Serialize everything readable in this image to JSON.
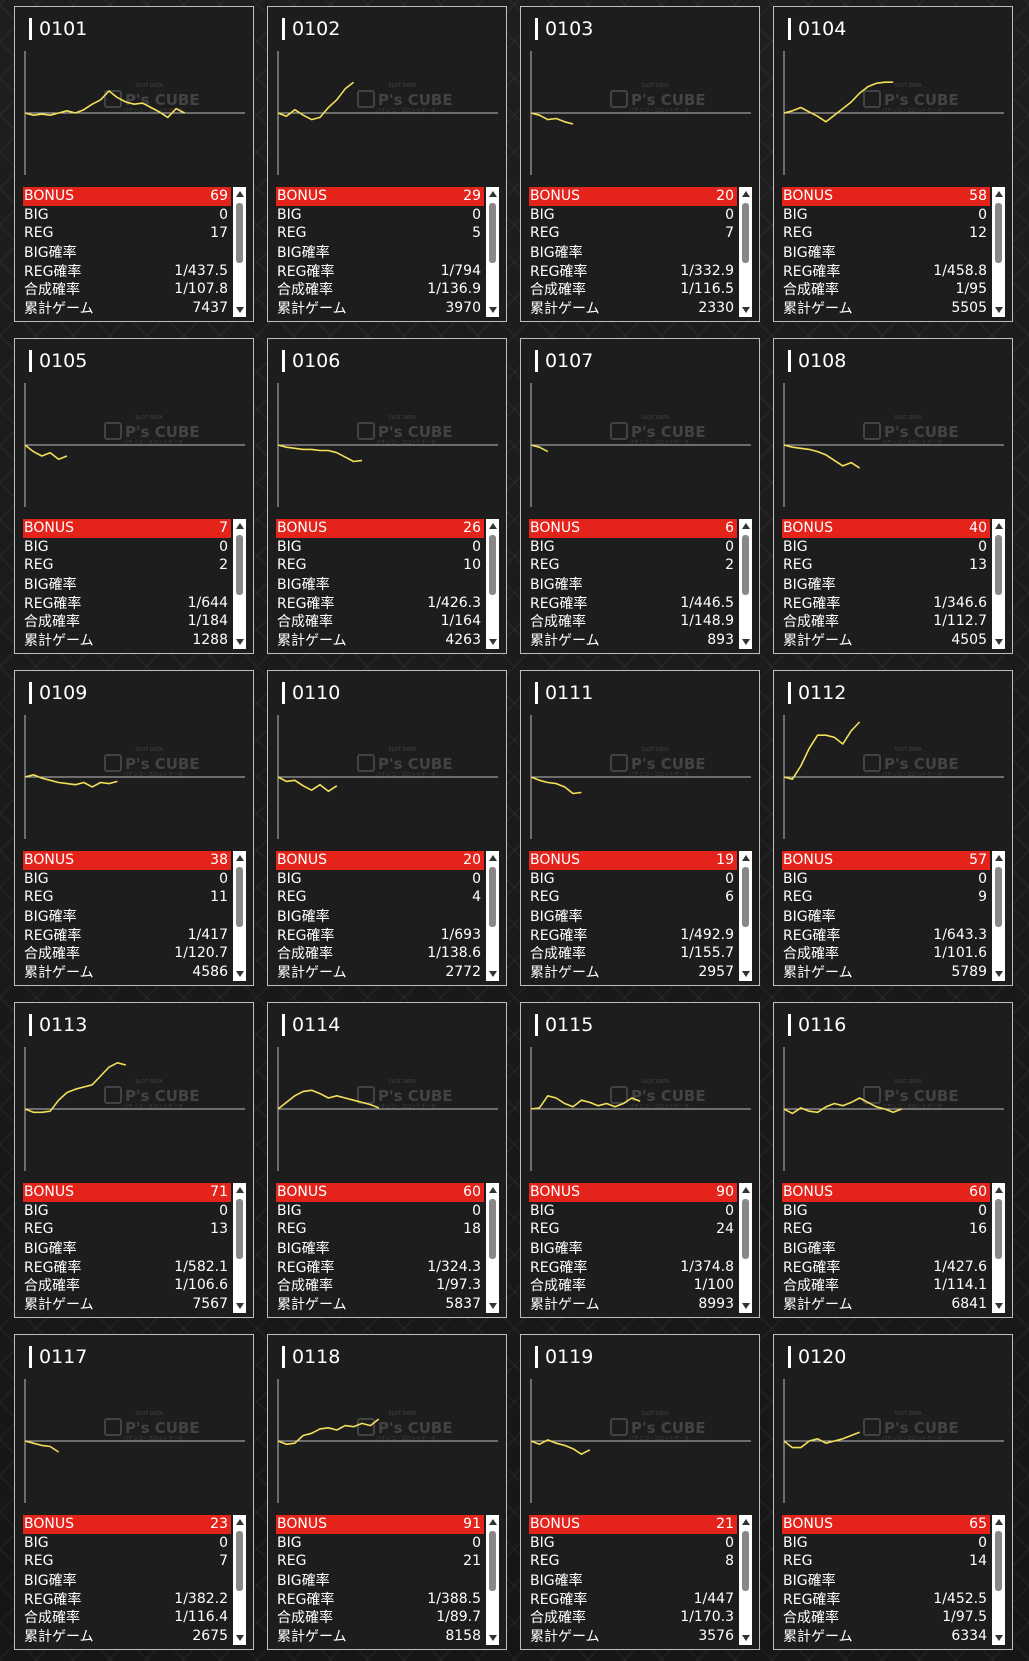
{
  "labels": {
    "bonus": "BONUS",
    "big": "BIG",
    "reg": "REG",
    "big_rate": "BIG確率",
    "reg_rate": "REG確率",
    "combined_rate": "合成確率",
    "total_games": "累計ゲーム"
  },
  "watermark": {
    "brand": "P's CUBE",
    "tagline": "SLOT DATA",
    "subtitle": "パチンコ・スロットデータ"
  },
  "colors": {
    "line": "#f2e05a",
    "bonus_bar": "#e4231b",
    "border": "#bdbdbd"
  },
  "icons": {
    "scroll_up": "triangle-up",
    "scroll_down": "triangle-down"
  },
  "machines": [
    {
      "no": "0101",
      "bonus": "69",
      "big": "0",
      "reg": "17",
      "big_rate": "",
      "reg_rate": "1/437.5",
      "combined_rate": "1/107.8",
      "total_games": "7437",
      "trend": [
        0,
        -2,
        -1,
        -2,
        0,
        2,
        0,
        3,
        8,
        12,
        20,
        14,
        10,
        8,
        9,
        5,
        1,
        -4,
        4,
        0
      ]
    },
    {
      "no": "0102",
      "bonus": "29",
      "big": "0",
      "reg": "5",
      "big_rate": "",
      "reg_rate": "1/794",
      "combined_rate": "1/136.9",
      "total_games": "3970",
      "trend": [
        0,
        -3,
        3,
        -2,
        -6,
        -4,
        5,
        12,
        22,
        28
      ]
    },
    {
      "no": "0103",
      "bonus": "20",
      "big": "0",
      "reg": "7",
      "big_rate": "",
      "reg_rate": "1/332.9",
      "combined_rate": "1/116.5",
      "total_games": "2330",
      "trend": [
        0,
        -2,
        -6,
        -5,
        -8,
        -10
      ]
    },
    {
      "no": "0104",
      "bonus": "58",
      "big": "0",
      "reg": "12",
      "big_rate": "",
      "reg_rate": "1/458.8",
      "combined_rate": "1/95",
      "total_games": "5505",
      "trend": [
        0,
        2,
        5,
        1,
        -3,
        -8,
        -2,
        4,
        10,
        18,
        24,
        27,
        28,
        28
      ]
    },
    {
      "no": "0105",
      "bonus": "7",
      "big": "0",
      "reg": "2",
      "big_rate": "",
      "reg_rate": "1/644",
      "combined_rate": "1/184",
      "total_games": "1288",
      "trend": [
        0,
        -6,
        -10,
        -7,
        -13,
        -10
      ]
    },
    {
      "no": "0106",
      "bonus": "26",
      "big": "0",
      "reg": "10",
      "big_rate": "",
      "reg_rate": "1/426.3",
      "combined_rate": "1/164",
      "total_games": "4263",
      "trend": [
        0,
        -2,
        -3,
        -4,
        -4,
        -5,
        -5,
        -7,
        -11,
        -15,
        -14
      ]
    },
    {
      "no": "0107",
      "bonus": "6",
      "big": "0",
      "reg": "2",
      "big_rate": "",
      "reg_rate": "1/446.5",
      "combined_rate": "1/148.9",
      "total_games": "893",
      "trend": [
        0,
        -2,
        -6
      ]
    },
    {
      "no": "0108",
      "bonus": "40",
      "big": "0",
      "reg": "13",
      "big_rate": "",
      "reg_rate": "1/346.6",
      "combined_rate": "1/112.7",
      "total_games": "4505",
      "trend": [
        0,
        -2,
        -3,
        -4,
        -6,
        -9,
        -14,
        -19,
        -16,
        -21
      ]
    },
    {
      "no": "0109",
      "bonus": "38",
      "big": "0",
      "reg": "11",
      "big_rate": "",
      "reg_rate": "1/417",
      "combined_rate": "1/120.7",
      "total_games": "4586",
      "trend": [
        0,
        2,
        -1,
        -3,
        -5,
        -6,
        -7,
        -5,
        -9,
        -5,
        -6,
        -4
      ]
    },
    {
      "no": "0110",
      "bonus": "20",
      "big": "0",
      "reg": "4",
      "big_rate": "",
      "reg_rate": "1/693",
      "combined_rate": "1/138.6",
      "total_games": "2772",
      "trend": [
        0,
        -4,
        -3,
        -8,
        -12,
        -7,
        -13,
        -8
      ]
    },
    {
      "no": "0111",
      "bonus": "19",
      "big": "0",
      "reg": "6",
      "big_rate": "",
      "reg_rate": "1/492.9",
      "combined_rate": "1/155.7",
      "total_games": "2957",
      "trend": [
        0,
        -3,
        -5,
        -6,
        -9,
        -15,
        -14
      ]
    },
    {
      "no": "0112",
      "bonus": "57",
      "big": "0",
      "reg": "9",
      "big_rate": "",
      "reg_rate": "1/643.3",
      "combined_rate": "1/101.6",
      "total_games": "5789",
      "trend": [
        0,
        -2,
        10,
        26,
        38,
        38,
        36,
        30,
        42,
        50
      ]
    },
    {
      "no": "0113",
      "bonus": "71",
      "big": "0",
      "reg": "13",
      "big_rate": "",
      "reg_rate": "1/582.1",
      "combined_rate": "1/106.6",
      "total_games": "7567",
      "trend": [
        0,
        -3,
        -3,
        -2,
        8,
        15,
        18,
        20,
        22,
        30,
        38,
        42,
        40
      ]
    },
    {
      "no": "0114",
      "bonus": "60",
      "big": "0",
      "reg": "18",
      "big_rate": "",
      "reg_rate": "1/324.3",
      "combined_rate": "1/97.3",
      "total_games": "5837",
      "trend": [
        0,
        6,
        12,
        16,
        17,
        14,
        10,
        12,
        10,
        8,
        6,
        4,
        1
      ]
    },
    {
      "no": "0115",
      "bonus": "90",
      "big": "0",
      "reg": "24",
      "big_rate": "",
      "reg_rate": "1/374.8",
      "combined_rate": "1/100",
      "total_games": "8993",
      "trend": [
        0,
        1,
        12,
        10,
        5,
        2,
        8,
        6,
        3,
        5,
        2,
        5,
        10,
        7
      ]
    },
    {
      "no": "0116",
      "bonus": "60",
      "big": "0",
      "reg": "16",
      "big_rate": "",
      "reg_rate": "1/427.6",
      "combined_rate": "1/114.1",
      "total_games": "6841",
      "trend": [
        0,
        -4,
        1,
        -2,
        -3,
        2,
        5,
        3,
        6,
        10,
        6,
        2,
        0,
        -3,
        0
      ]
    },
    {
      "no": "0117",
      "bonus": "23",
      "big": "0",
      "reg": "7",
      "big_rate": "",
      "reg_rate": "1/382.2",
      "combined_rate": "1/116.4",
      "total_games": "2675",
      "trend": [
        0,
        -2,
        -4,
        -5,
        -10
      ]
    },
    {
      "no": "0118",
      "bonus": "91",
      "big": "0",
      "reg": "21",
      "big_rate": "",
      "reg_rate": "1/388.5",
      "combined_rate": "1/89.7",
      "total_games": "8158",
      "trend": [
        0,
        -3,
        -2,
        5,
        7,
        11,
        12,
        10,
        14,
        13,
        16,
        14,
        20
      ]
    },
    {
      "no": "0119",
      "bonus": "21",
      "big": "0",
      "reg": "8",
      "big_rate": "",
      "reg_rate": "1/447",
      "combined_rate": "1/170.3",
      "total_games": "3576",
      "trend": [
        0,
        -3,
        1,
        -2,
        -4,
        -7,
        -12,
        -8
      ]
    },
    {
      "no": "0120",
      "bonus": "65",
      "big": "0",
      "reg": "14",
      "big_rate": "",
      "reg_rate": "1/452.5",
      "combined_rate": "1/97.5",
      "total_games": "6334",
      "trend": [
        0,
        -6,
        -6,
        0,
        2,
        -2,
        0,
        2,
        5,
        8
      ]
    }
  ]
}
